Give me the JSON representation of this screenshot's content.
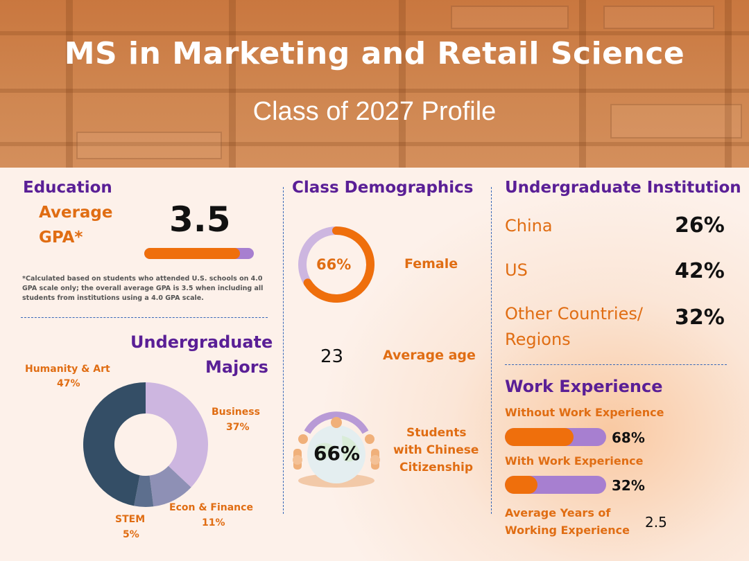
{
  "header": {
    "title": "MS in Marketing and Retail Science",
    "subtitle": "Class of 2027 Profile"
  },
  "education": {
    "heading": "Education",
    "gpa_label_line1": "Average",
    "gpa_label_line2": "GPA*",
    "gpa_value": "3.5",
    "gpa_bar_fraction": 0.875,
    "note": "*Calculated based on students who attended U.S. schools on 4.0 GPA scale only; the overall average GPA is 3.5 when including all students from institutions using a 4.0 GPA scale."
  },
  "majors": {
    "heading_line1": "Undergraduate",
    "heading_line2": "Majors",
    "chart_data": {
      "type": "pie",
      "slices": [
        {
          "name": "Business",
          "value": 37,
          "label": "37%",
          "color": "#cdb6e0"
        },
        {
          "name": "Econ & Finance",
          "value": 11,
          "label": "11%",
          "color": "#8e90b5"
        },
        {
          "name": "STEM",
          "value": 5,
          "label": "5%",
          "color": "#5d6f8e"
        },
        {
          "name": "Humanity & Art",
          "value": 47,
          "label": "47%",
          "color": "#344e66"
        }
      ]
    }
  },
  "demographics": {
    "heading": "Class Demographics",
    "female_pct": "66%",
    "female_fraction": 0.66,
    "female_label": "Female",
    "avg_age_value": "23",
    "avg_age_label": "Average age",
    "chinese_pct": "66%",
    "chinese_label_line1": "Students",
    "chinese_label_line2": "with Chinese",
    "chinese_label_line3": "Citizenship",
    "colors": {
      "ring_fill": "#ef6f0c",
      "ring_track": "#cdb6e0"
    }
  },
  "institution": {
    "heading": "Undergraduate Institution",
    "rows": [
      {
        "label": "China",
        "value": "26%"
      },
      {
        "label": "US",
        "value": "42%"
      },
      {
        "label_line1": "Other Countries/",
        "label_line2": "Regions",
        "value": "32%"
      }
    ]
  },
  "work": {
    "heading": "Work Experience",
    "without_label": "Without Work Experience",
    "without_value": "68%",
    "without_fraction": 0.68,
    "with_label": "With Work Experience",
    "with_value": "32%",
    "with_fraction": 0.32,
    "years_label_line1": "Average Years of",
    "years_label_line2": "Working Experience",
    "years_value": "2.5"
  }
}
